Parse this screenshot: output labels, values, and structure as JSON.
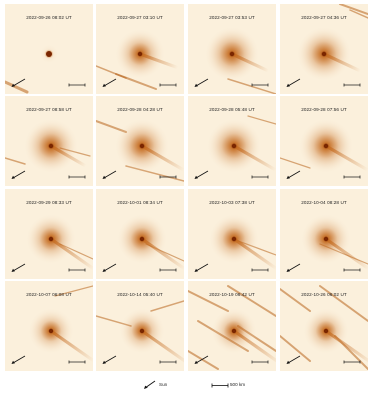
{
  "panels": [
    {
      "timestamp": "2022-09-26  08:02 UT"
    },
    {
      "timestamp": "2022-09-27  03:10 UT"
    },
    {
      "timestamp": "2022-09-27  03:53 UT"
    },
    {
      "timestamp": "2022-09-27  04:36 UT"
    },
    {
      "timestamp": "2022-09-27  08:58 UT"
    },
    {
      "timestamp": "2022-09-28  04:28 UT"
    },
    {
      "timestamp": "2022-09-28  05:48 UT"
    },
    {
      "timestamp": "2022-09-28  07:56 UT"
    },
    {
      "timestamp": "2022-09-29  08:33 UT"
    },
    {
      "timestamp": "2022-10-01  08:34 UT"
    },
    {
      "timestamp": "2022-10-03  07:38 UT"
    },
    {
      "timestamp": "2022-10-04  08:28 UT"
    },
    {
      "timestamp": "2022-10-07  06:08 UT"
    },
    {
      "timestamp": "2022-10-14  05:40 UT"
    },
    {
      "timestamp": "2022-10-19  06:42 UT"
    },
    {
      "timestamp": "2022-10-26  06:02 UT"
    }
  ],
  "legend": {
    "sun_label": "Sun",
    "scale_label": "500 km"
  },
  "colors": {
    "background": "#fbf0dc",
    "nucleus": "#7a2600",
    "coma": "#c46a1e",
    "trail": "#b8651c",
    "markers": "#111111"
  }
}
